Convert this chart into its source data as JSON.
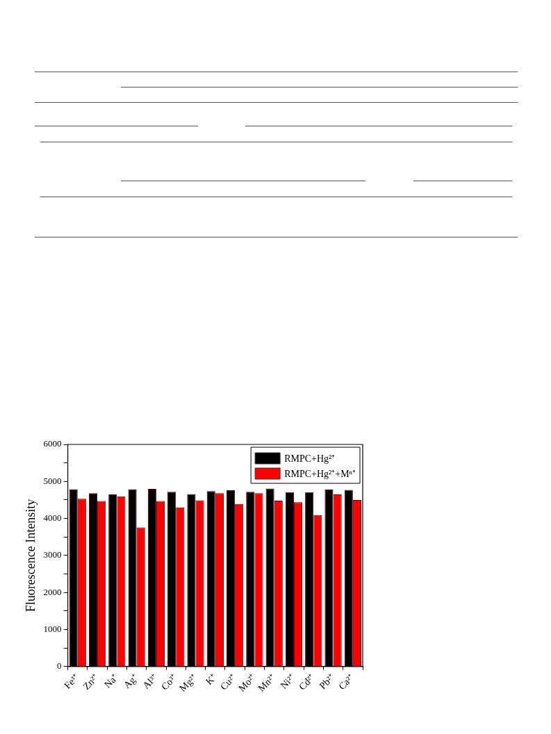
{
  "chart_data": {
    "type": "bar",
    "ylabel": "Fluorescence Intensity",
    "categories": [
      "Fe³⁺",
      "Zn²⁺",
      "Na⁺",
      "Ag⁺",
      "Al³⁺",
      "Co³⁺",
      "Mg²⁺",
      "K⁺",
      "Cu²⁺",
      "Mo²⁺",
      "Mn²⁺",
      "Ni²⁺",
      "Cd²⁺",
      "Pb²⁺",
      "Ca²⁺"
    ],
    "series": [
      {
        "name": "RMPC+Hg²⁺",
        "color": "#000000",
        "values": [
          4790,
          4680,
          4650,
          4790,
          4800,
          4720,
          4660,
          4740,
          4760,
          4720,
          4810,
          4710,
          4710,
          4780,
          4770
        ]
      },
      {
        "name": "RMPC+Hg²⁺+Mⁿ⁺",
        "color": "#ff0000",
        "values": [
          4530,
          4470,
          4600,
          3760,
          4470,
          4300,
          4490,
          4680,
          4390,
          4680,
          4480,
          4440,
          4090,
          4650,
          4500
        ]
      }
    ],
    "ylim": [
      0,
      6000
    ],
    "yticks": [
      0,
      {
        "value": 500,
        "label": null
      },
      1000,
      {
        "value": 1500,
        "label": null
      },
      2000,
      {
        "value": 2500,
        "label": null
      },
      3000,
      {
        "value": 3500,
        "label": null
      },
      4000,
      {
        "value": 4500,
        "label": null
      },
      5000,
      {
        "value": 5500,
        "label": null
      },
      6000
    ],
    "grid": false,
    "legend": "top right"
  }
}
